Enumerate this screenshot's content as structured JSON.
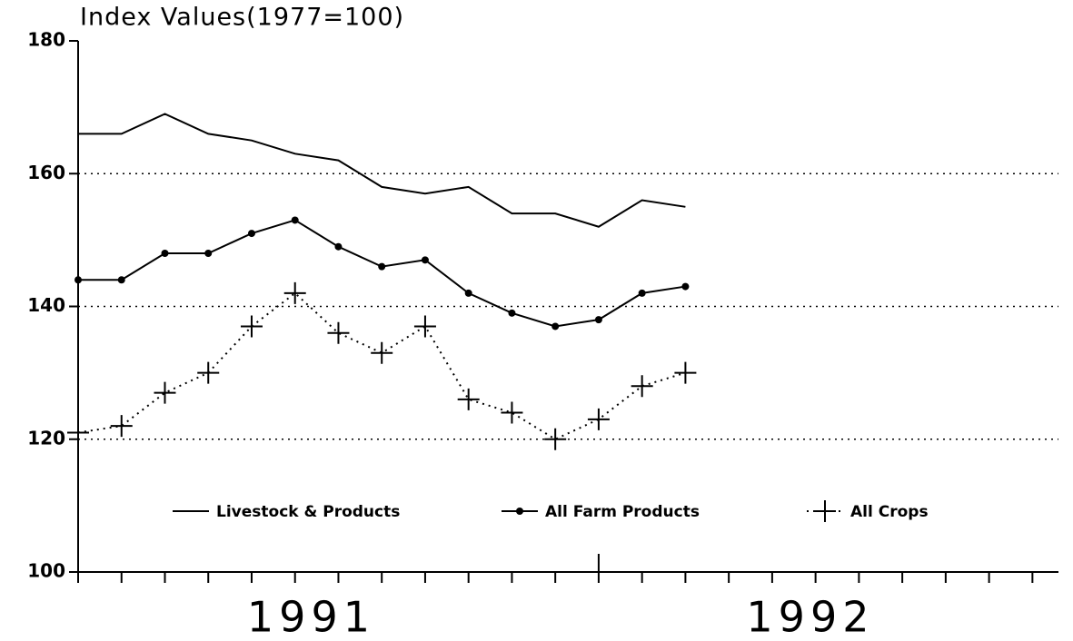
{
  "chart_data": {
    "type": "line",
    "title": "Index Values(1977=100)",
    "x": [
      0,
      1,
      2,
      3,
      4,
      5,
      6,
      7,
      8,
      9,
      10,
      11,
      12,
      13,
      14
    ],
    "xlim": [
      0,
      22.6
    ],
    "xticks": [
      0,
      1,
      2,
      3,
      4,
      5,
      6,
      7,
      8,
      9,
      10,
      11,
      12,
      13,
      14,
      15,
      16,
      17,
      18,
      19,
      20,
      21,
      22
    ],
    "year_labels": [
      "1991",
      "1992"
    ],
    "ylim": [
      100,
      180
    ],
    "yticks": [
      100,
      120,
      140,
      160,
      180
    ],
    "grid": true,
    "legend": "bottom",
    "series": [
      {
        "name": "Livestock & Products",
        "color": "#000000",
        "style": "solid",
        "marker": "none",
        "values": [
          166,
          166,
          169,
          166,
          165,
          163,
          162,
          158,
          157,
          158,
          154,
          154,
          152,
          156,
          155
        ]
      },
      {
        "name": "All Farm Products",
        "color": "#000000",
        "style": "solid",
        "marker": "dot",
        "values": [
          144,
          144,
          148,
          148,
          151,
          153,
          149,
          146,
          147,
          142,
          139,
          137,
          138,
          142,
          143
        ]
      },
      {
        "name": "All Crops",
        "color": "#000000",
        "style": "dotted",
        "marker": "plus",
        "values": [
          121,
          122,
          127,
          130,
          137,
          142,
          136,
          133,
          137,
          126,
          124,
          120,
          123,
          128,
          130
        ]
      }
    ]
  }
}
